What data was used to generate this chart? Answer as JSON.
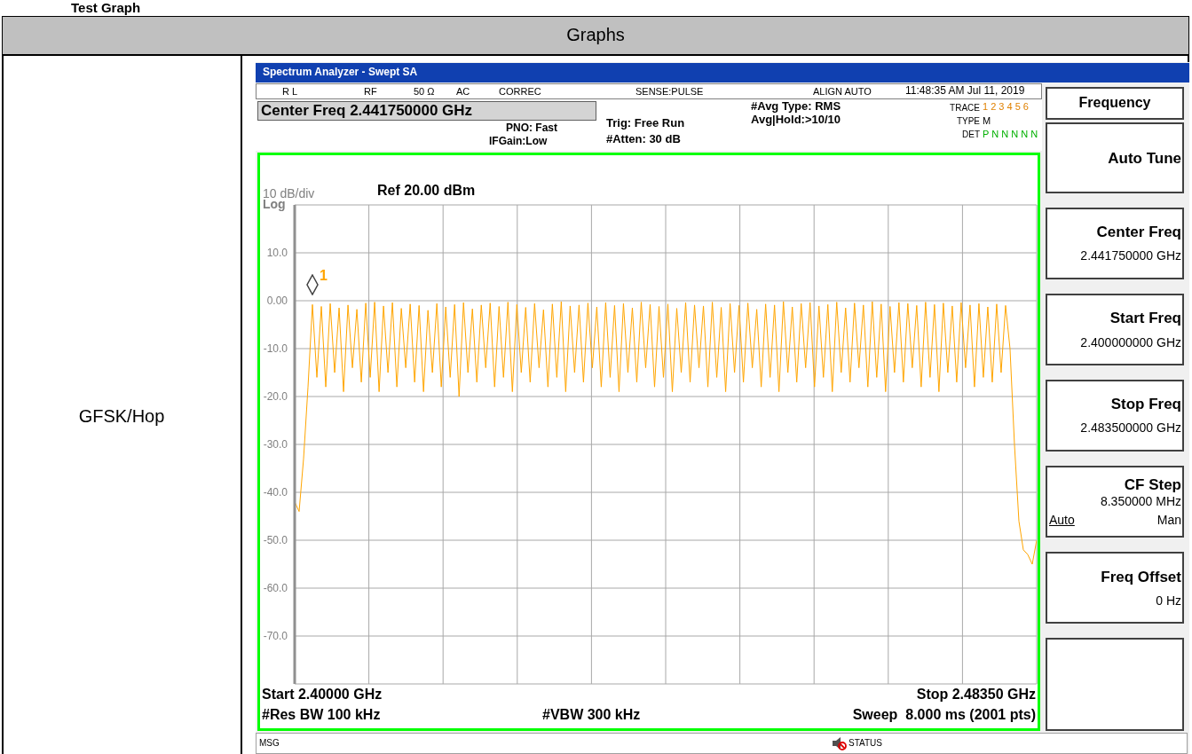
{
  "chart_data": {
    "type": "line",
    "categories": [
      null,
      null,
      null,
      null,
      null,
      null,
      null,
      null,
      null,
      null,
      null,
      null,
      null,
      null,
      null,
      null,
      null,
      null,
      null,
      null,
      null,
      null,
      null,
      null,
      null,
      null,
      null,
      null,
      null,
      null,
      null,
      null,
      null,
      null,
      null,
      null,
      null,
      null,
      null,
      null,
      null,
      null,
      null,
      null,
      null,
      null,
      null,
      null,
      null,
      null,
      null,
      null,
      null,
      null,
      null,
      null,
      null,
      null,
      null,
      null,
      null,
      null,
      null,
      null,
      null,
      null,
      null,
      null,
      null,
      null,
      null,
      null,
      null,
      null,
      null,
      null,
      null,
      null,
      null,
      null,
      null,
      null,
      null,
      null,
      null,
      null,
      null,
      null,
      null,
      null,
      null,
      null,
      null,
      null,
      null,
      null,
      null,
      null,
      null,
      null,
      null,
      null,
      null,
      null,
      null,
      null,
      null,
      null,
      null,
      null,
      null,
      null,
      null,
      null,
      null,
      null,
      null,
      null,
      null,
      null,
      null,
      null,
      null,
      null,
      null,
      null,
      null,
      null,
      null,
      null,
      null,
      null,
      null,
      null,
      null,
      null,
      null,
      null,
      null,
      null,
      null,
      null,
      null,
      null,
      null,
      null,
      null,
      null,
      null,
      null,
      null,
      null,
      null,
      null,
      null,
      null,
      null,
      null,
      null,
      null,
      null,
      null,
      null,
      null,
      null,
      null,
      null,
      null
    ],
    "ylim": [
      -80,
      20
    ],
    "yticks": [
      {
        "value": 20,
        "label": null
      },
      {
        "value": 10,
        "label": "10.0"
      },
      {
        "value": 0,
        "label": "0.00"
      },
      {
        "value": -10,
        "label": "-10.0"
      },
      {
        "value": -20,
        "label": "-20.0"
      },
      {
        "value": -30,
        "label": "-30.0"
      },
      {
        "value": -40,
        "label": "-40.0"
      },
      {
        "value": -50,
        "label": "-50.0"
      },
      {
        "value": -60,
        "label": "-60.0"
      },
      {
        "value": -70,
        "label": "-70.0"
      },
      {
        "value": -80,
        "label": null
      }
    ],
    "grid": true,
    "tick_labels": "y",
    "series": [
      {
        "color": "#ffa500",
        "values": [
          -42,
          -44,
          -33,
          -18,
          -0.8,
          -16,
          -1.2,
          -18,
          -0.6,
          -15,
          -1.5,
          -19,
          -0.9,
          -14,
          -1.8,
          -17,
          -0.5,
          -16,
          -0.3,
          -19,
          -1.1,
          -15,
          -0.4,
          -18,
          -1.6,
          -14,
          -0.7,
          -17,
          -1.0,
          -19,
          -2.0,
          -15,
          -0.6,
          -18,
          -1.3,
          -16,
          -0.8,
          -20,
          -0.4,
          -15,
          -1.7,
          -17,
          -0.9,
          -14,
          -0.5,
          -18,
          -1.2,
          -16,
          -0.3,
          -19,
          -0.8,
          -15,
          -1.4,
          -17,
          -0.6,
          -14,
          -1.9,
          -18,
          -0.7,
          -16,
          -0.2,
          -19,
          -1.1,
          -15,
          -0.9,
          -17,
          -0.5,
          -14,
          -1.3,
          -18,
          -0.4,
          -16,
          -1.0,
          -19,
          -0.6,
          -15,
          -1.5,
          -17,
          -0.3,
          -14,
          -0.8,
          -18,
          -1.2,
          -16,
          -0.7,
          -19,
          -1.6,
          -15,
          -0.4,
          -17,
          -0.9,
          -14,
          -1.1,
          -18,
          -0.3,
          -16,
          -1.4,
          -19,
          -0.6,
          -15,
          -1.0,
          -17,
          -0.5,
          -14,
          -1.8,
          -18,
          -0.7,
          -16,
          -0.9,
          -19,
          -0.2,
          -15,
          -1.3,
          -17,
          -0.6,
          -14,
          -0.4,
          -18,
          -1.1,
          -16,
          -0.8,
          -19,
          -0.3,
          -15,
          -1.5,
          -17,
          -0.5,
          -14,
          -0.9,
          -18,
          -0.2,
          -16,
          -0.7,
          -19,
          -1.2,
          -15,
          -0.4,
          -17,
          -0.6,
          -14,
          -1.0,
          -18,
          -0.3,
          -16,
          -0.8,
          -19,
          -0.5,
          -15,
          -1.1,
          -17,
          -0.4,
          -14,
          -0.9,
          -18,
          -0.6,
          -16,
          -1.3,
          -17,
          -0.7,
          -15,
          -1.0,
          -10,
          -30,
          -46,
          -52,
          -53,
          -55,
          -50
        ]
      }
    ],
    "annotations": [
      "Test Graph",
      "Graphs",
      "GFSK/Hop",
      "Spectrum Analyzer - Swept SA",
      "R L",
      "RF",
      "50 Ω",
      "AC",
      "CORREC",
      "SENSE:PULSE",
      "ALIGN AUTO",
      "11:48:35 AM Jul 11, 2019",
      "Center Freq 2.441750000 GHz",
      "PNO: Fast",
      "IFGain:Low",
      "Trig: Free Run",
      "#Atten: 30 dB",
      "#Avg Type: RMS",
      "Avg|Hold:>10/10",
      "TRACE",
      "TYPE",
      "DET",
      "1 2 3 4 5 6",
      "M",
      "P N N N N N",
      "10 dB/div",
      "Log",
      "Ref 20.00 dBm",
      "Start 2.40000 GHz",
      "Stop 2.48350 GHz",
      "#Res BW 100 kHz",
      "#VBW 300 kHz",
      "Sweep  8.000 ms (2001 pts)",
      "MSG",
      "STATUS",
      "Frequency",
      "Auto Tune",
      "Center Freq",
      "2.441750000 GHz",
      "Start Freq",
      "2.400000000 GHz",
      "Stop Freq",
      "2.483500000 GHz",
      "CF Step",
      "8.350000 MHz",
      "Auto",
      "Man",
      "Freq Offset",
      "0 Hz",
      "1"
    ]
  }
}
